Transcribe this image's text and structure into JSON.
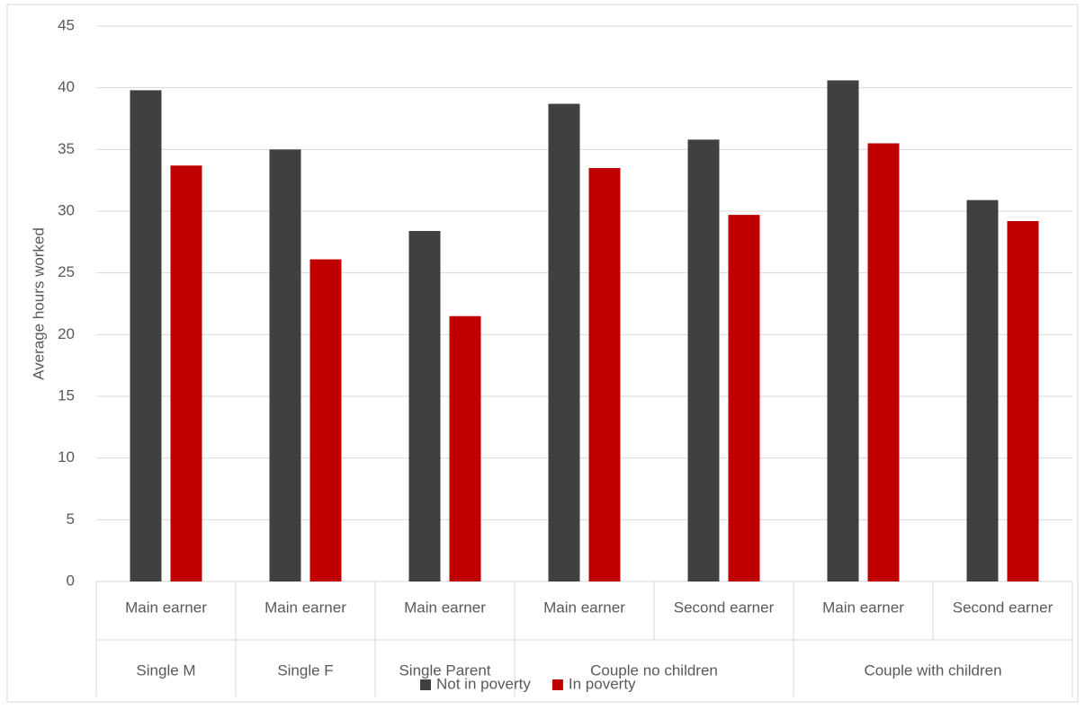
{
  "chart_data": {
    "type": "bar",
    "y_label": "Average hours worked",
    "groups": [
      {
        "name": "Single M",
        "categories": [
          "Main earner"
        ]
      },
      {
        "name": "Single F",
        "categories": [
          "Main earner"
        ]
      },
      {
        "name": "Single Parent",
        "categories": [
          "Main earner"
        ]
      },
      {
        "name": "Couple no children",
        "categories": [
          "Main earner",
          "Second earner"
        ]
      },
      {
        "name": "Couple with children",
        "categories": [
          "Main earner",
          "Second earner"
        ]
      }
    ],
    "series": [
      {
        "name": "Not in poverty",
        "color": "#404040",
        "values": [
          39.8,
          35.0,
          28.4,
          38.7,
          35.8,
          40.6,
          30.9
        ]
      },
      {
        "name": "In poverty",
        "color": "#c00000",
        "values": [
          33.7,
          26.1,
          21.5,
          33.5,
          29.7,
          35.5,
          29.2
        ]
      }
    ],
    "ylim": [
      0,
      45
    ],
    "yticks": [
      0,
      5,
      10,
      15,
      20,
      25,
      30,
      35,
      40,
      45
    ],
    "grid": true,
    "legend": "bottom"
  }
}
